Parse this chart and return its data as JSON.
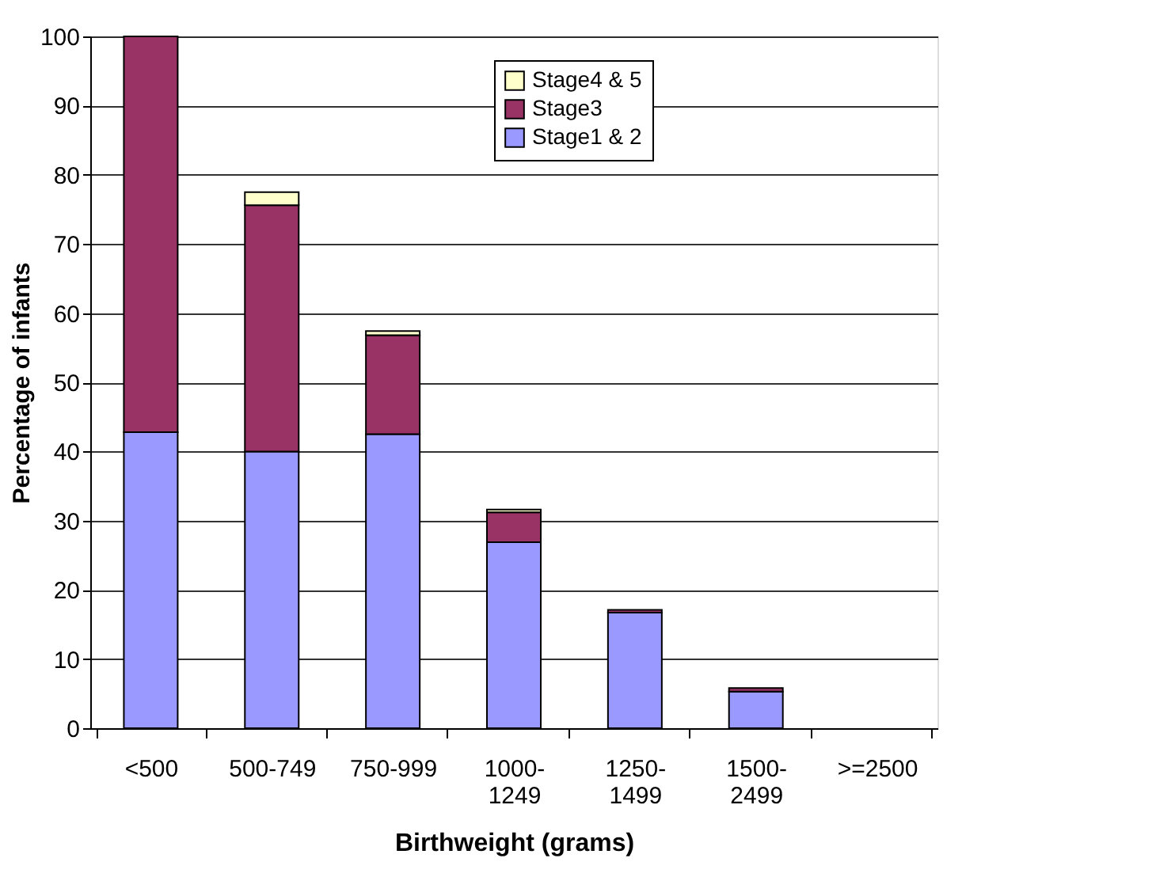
{
  "chart_data": {
    "type": "bar",
    "stacked": true,
    "xlabel": "Birthweight (grams)",
    "ylabel": "Percentage of infants",
    "categories": [
      "<500",
      "500-749",
      "750-999",
      "1000-1249",
      "1250-1499",
      "1500-2499",
      ">=2500"
    ],
    "series": [
      {
        "name": "Stage1 & 2",
        "color": "#9999ff",
        "values": [
          42.8,
          40.0,
          42.5,
          26.9,
          16.7,
          5.3,
          0
        ]
      },
      {
        "name": "Stage3",
        "color": "#993366",
        "values": [
          57.2,
          35.6,
          14.3,
          4.3,
          0.4,
          0.5,
          0
        ]
      },
      {
        "name": "Stage4 & 5",
        "color": "#ffffcc",
        "values": [
          0,
          1.9,
          0.6,
          0.4,
          0,
          0,
          0
        ]
      }
    ],
    "ylim": [
      0,
      100
    ],
    "yticks": [
      0,
      10,
      20,
      30,
      40,
      50,
      60,
      70,
      80,
      90,
      100
    ],
    "grid": "y",
    "legend": "top"
  }
}
